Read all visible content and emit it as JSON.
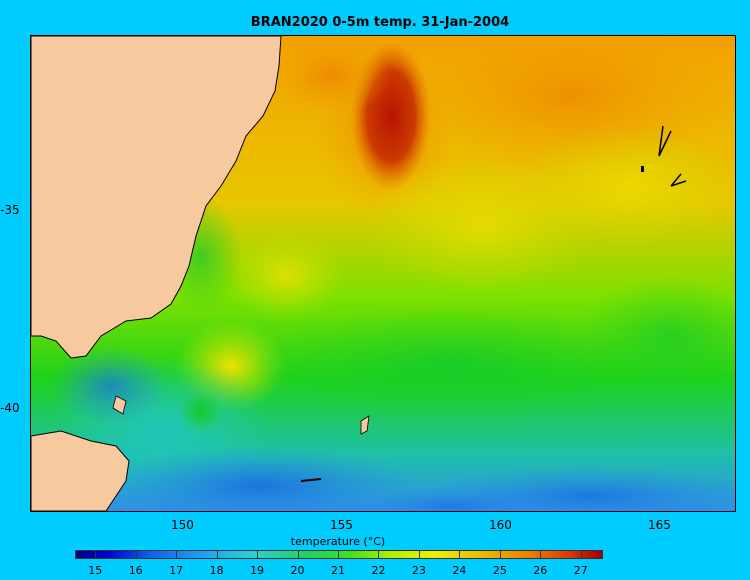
{
  "title": "BRAN2020 0-5m temp. 31-Jan-2004",
  "x_ticks": [
    "150",
    "155",
    "160",
    "165"
  ],
  "y_ticks": [
    "-35",
    "-40"
  ],
  "colorbar": {
    "label": "temperature (°C)",
    "ticks": [
      "15",
      "16",
      "17",
      "18",
      "19",
      "20",
      "21",
      "22",
      "23",
      "24",
      "25",
      "26",
      "27"
    ],
    "range": [
      14.5,
      27.5
    ]
  },
  "colors": {
    "background": "#00ccff",
    "land": "#f7c99e",
    "coastline": "#000000"
  }
}
